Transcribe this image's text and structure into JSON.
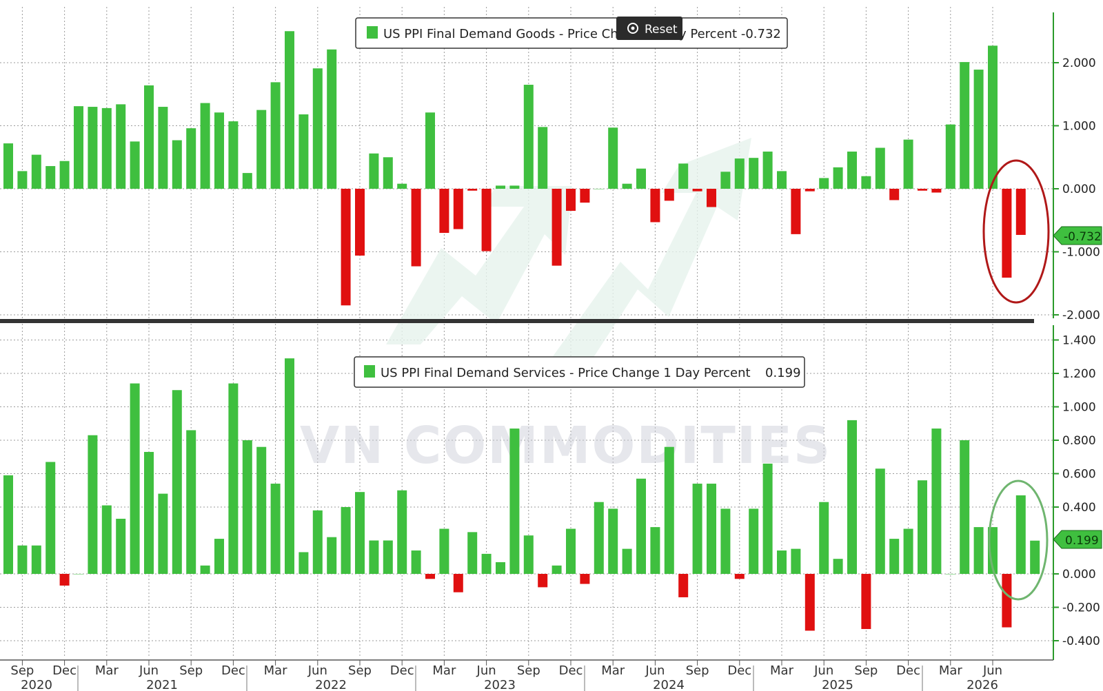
{
  "reset_label": "Reset",
  "watermark": "VN COMMODITIES",
  "colors": {
    "positive": "#3fbf3f",
    "negative": "#e01010",
    "axis": "#2a9a2a",
    "grid": "#9a9a9a",
    "divider": "#333333"
  },
  "x_axis": {
    "months": [
      "Sep",
      "Dec",
      "Mar",
      "Jun",
      "Sep",
      "Dec",
      "Mar",
      "Jun",
      "Sep",
      "Dec",
      "Mar",
      "Jun",
      "Sep",
      "Dec",
      "Mar",
      "Jun",
      "Sep",
      "Dec",
      "Mar",
      "Jun",
      "Sep",
      "Dec",
      "Mar",
      "Jun"
    ],
    "years": [
      "2020",
      "2021",
      "2022",
      "2023",
      "2024",
      "2025",
      "2026"
    ]
  },
  "chart_data": [
    {
      "type": "bar",
      "title": "US PPI Final Demand Goods - Price Ch",
      "legend_suffix": "y Percent  -0.732",
      "last_value_tag": "-0.732",
      "ylim": [
        -2.0,
        2.5
      ],
      "yticks": [
        "2.000",
        "1.000",
        "0.000",
        "-1.000",
        "-2.000"
      ],
      "ytick_values": [
        2,
        1,
        0,
        -1,
        -2
      ],
      "x_months": [
        "2020-08",
        "2020-09",
        "2020-10",
        "2020-11",
        "2020-12",
        "2021-01",
        "2021-02",
        "2021-03",
        "2021-04",
        "2021-05",
        "2021-06",
        "2021-07",
        "2021-08",
        "2021-09",
        "2021-10",
        "2021-11",
        "2021-12",
        "2022-01",
        "2022-02",
        "2022-03",
        "2022-04",
        "2022-05",
        "2022-06",
        "2022-07",
        "2022-08",
        "2022-09",
        "2022-10",
        "2022-11",
        "2022-12",
        "2023-01",
        "2023-02",
        "2023-03",
        "2023-04",
        "2023-05",
        "2023-06",
        "2023-07",
        "2023-08",
        "2023-09",
        "2023-10",
        "2023-11",
        "2023-12",
        "2024-01",
        "2024-02",
        "2024-03",
        "2024-04",
        "2024-05",
        "2024-06",
        "2024-07",
        "2024-08",
        "2024-09",
        "2024-10",
        "2024-11",
        "2024-12",
        "2025-01",
        "2025-02",
        "2025-03",
        "2025-04",
        "2025-05",
        "2025-06",
        "2025-07",
        "2025-08",
        "2025-09",
        "2025-10",
        "2025-11",
        "2025-12",
        "2026-01",
        "2026-02",
        "2026-03",
        "2026-04",
        "2026-05",
        "2026-06",
        "2026-07",
        "2026-08"
      ],
      "values": [
        0.72,
        0.28,
        0.54,
        0.36,
        0.44,
        1.31,
        1.3,
        1.28,
        1.34,
        0.75,
        1.64,
        1.3,
        0.77,
        0.96,
        1.36,
        1.21,
        1.07,
        0.25,
        1.25,
        1.69,
        2.5,
        1.18,
        1.91,
        2.21,
        -1.85,
        -1.06,
        0.56,
        0.5,
        0.08,
        -1.23,
        1.21,
        -0.7,
        -0.64,
        -0.03,
        -0.99,
        0.05,
        0.05,
        1.65,
        0.98,
        -1.22,
        -0.35,
        -0.22,
        0.0,
        0.97,
        0.08,
        0.32,
        -0.53,
        -0.19,
        0.4,
        -0.04,
        -0.29,
        0.27,
        0.48,
        0.49,
        0.59,
        0.28,
        -0.72,
        -0.04,
        0.17,
        0.34,
        0.59,
        0.2,
        0.65,
        -0.18,
        0.78,
        -0.03,
        -0.06,
        1.02,
        2.01,
        1.89,
        2.27,
        -1.41,
        -0.732
      ]
    },
    {
      "type": "bar",
      "title": "US PPI Final Demand Services - Price Change 1 Day Percent",
      "legend_value": "0.199",
      "last_value_tag": "0.199",
      "ylim": [
        -0.45,
        1.42
      ],
      "yticks": [
        "1.400",
        "1.200",
        "1.000",
        "0.800",
        "0.600",
        "0.400",
        "0.000",
        "-0.200",
        "-0.400"
      ],
      "ytick_values": [
        1.4,
        1.2,
        1.0,
        0.8,
        0.6,
        0.4,
        0.0,
        -0.2,
        -0.4
      ],
      "values": [
        0.59,
        0.17,
        0.17,
        0.67,
        -0.07,
        0.0,
        0.83,
        0.41,
        0.33,
        1.14,
        0.73,
        0.48,
        1.1,
        0.86,
        0.05,
        0.21,
        1.14,
        0.8,
        0.76,
        0.54,
        1.29,
        0.13,
        0.38,
        0.22,
        0.4,
        0.49,
        0.2,
        0.2,
        0.5,
        0.14,
        -0.03,
        0.27,
        -0.11,
        0.25,
        0.12,
        0.07,
        0.87,
        0.23,
        -0.08,
        0.05,
        0.27,
        -0.06,
        0.43,
        0.39,
        0.15,
        0.57,
        0.28,
        0.76,
        -0.14,
        0.54,
        0.54,
        0.39,
        -0.03,
        0.39,
        0.66,
        0.14,
        0.15,
        -0.34,
        0.43,
        0.09,
        0.92,
        -0.33,
        0.63,
        0.21,
        0.27,
        0.56,
        0.87,
        0.0,
        0.8,
        0.28,
        0.28,
        -0.32,
        0.47,
        0.199
      ]
    }
  ]
}
